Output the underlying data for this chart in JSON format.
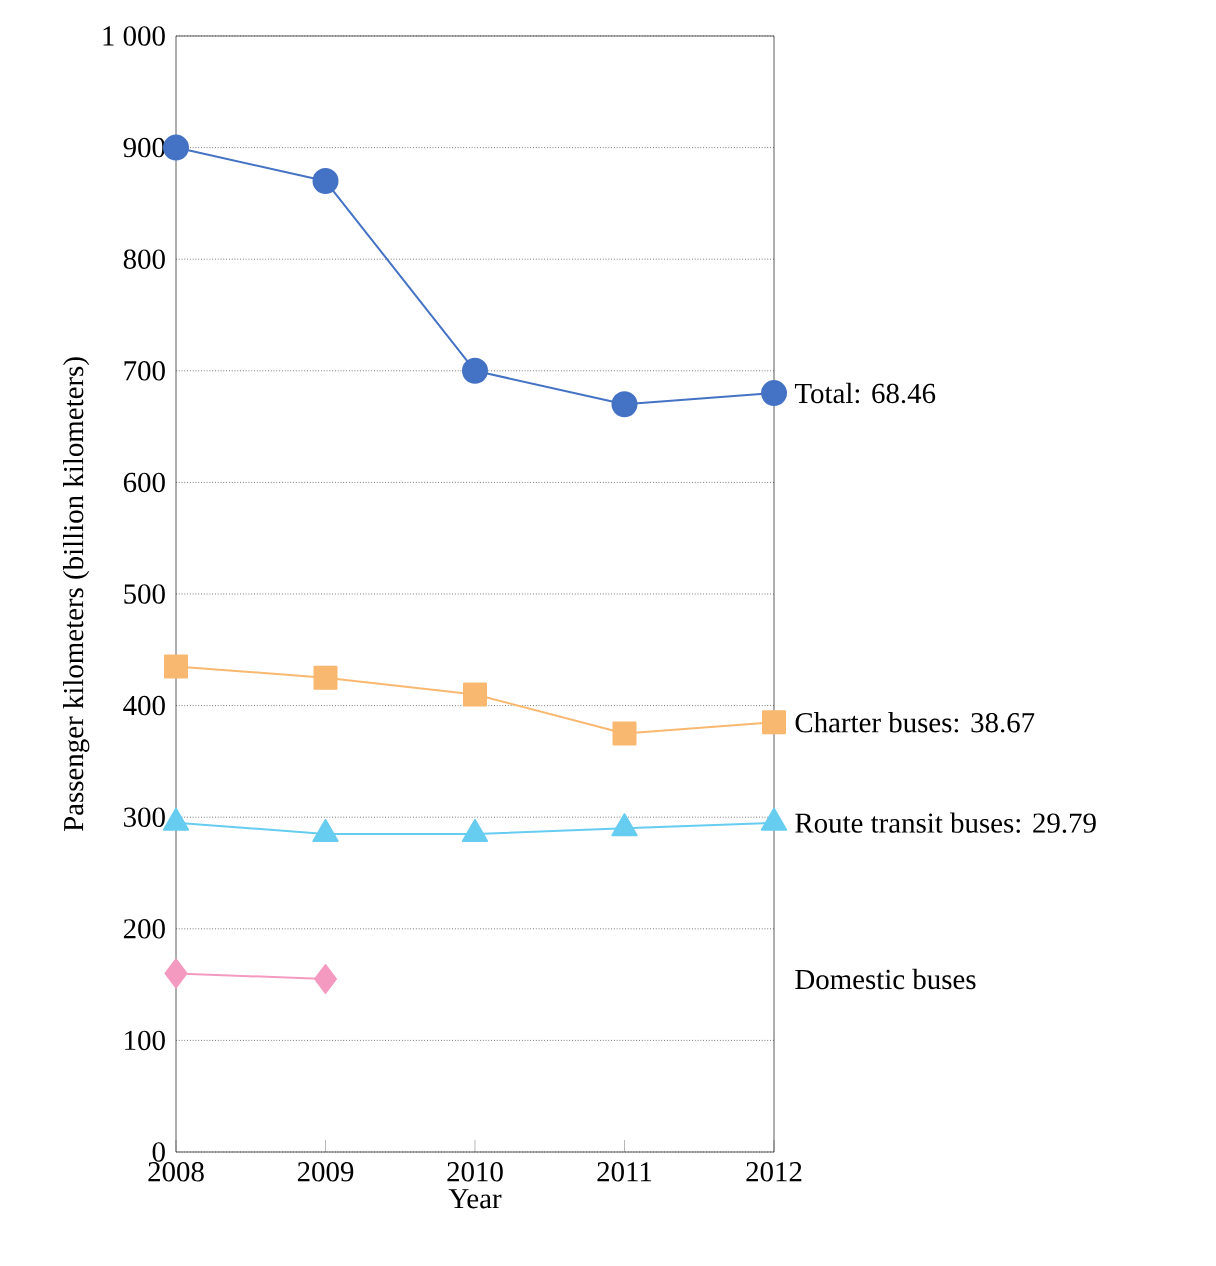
{
  "chart_data": {
    "type": "line",
    "xlabel": "Year",
    "ylabel": "Passenger kilometers (billion kilometers)",
    "x": [
      2008,
      2009,
      2010,
      2011,
      2012
    ],
    "xlim": [
      2008,
      2012
    ],
    "xticks": [
      2008,
      2009,
      2010,
      2011,
      2012
    ],
    "ylim": [
      0,
      1000
    ],
    "yticks": [
      0,
      100,
      200,
      300,
      400,
      500,
      600,
      700,
      800,
      900,
      {
        "value": 1000,
        "label": "1 000"
      }
    ],
    "grid": "y",
    "line_style": "solid",
    "series": [
      {
        "name": "Total: 68.46",
        "color": "#4472c4",
        "marker": "circle",
        "values": [
          900,
          870,
          700,
          670,
          680
        ]
      },
      {
        "name": "Charter buses: 38.67",
        "color": "#f9b870",
        "marker": "square",
        "values": [
          435,
          425,
          410,
          375,
          385
        ]
      },
      {
        "name": "Route transit buses: 29.79",
        "color": "#66ccf0",
        "marker": "triangle",
        "values": [
          295,
          285,
          285,
          290,
          295
        ]
      },
      {
        "name": "Domestic buses",
        "color": "#f49ac1",
        "marker": "diamond",
        "values": [
          160,
          155,
          null,
          null,
          null
        ]
      }
    ]
  }
}
